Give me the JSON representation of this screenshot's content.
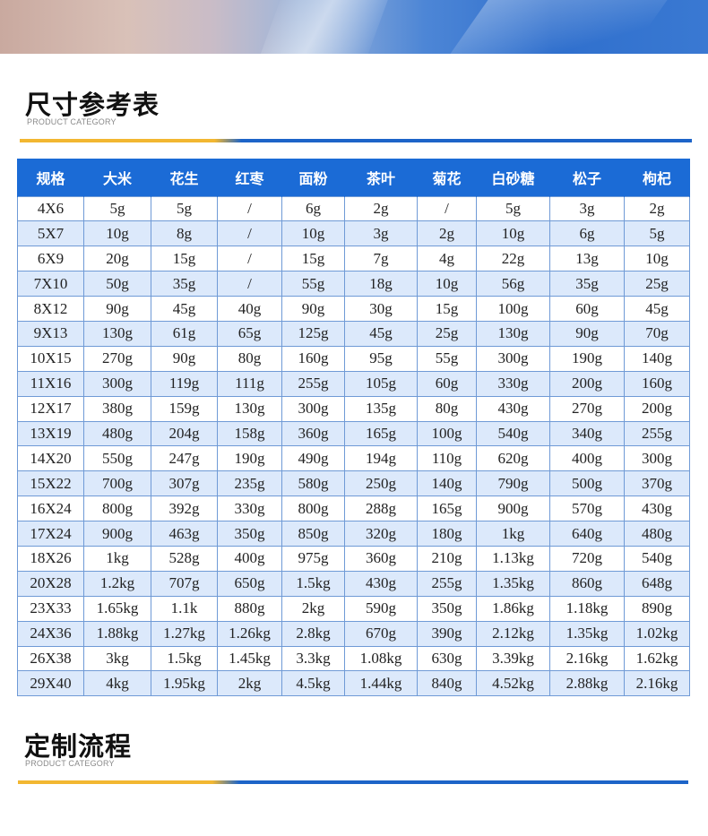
{
  "sections": {
    "size_reference": {
      "title": "尺寸参考表",
      "subtitle": "PRODUCT CATEGORY"
    },
    "custom_process": {
      "title": "定制流程",
      "subtitle": "PRODUCT CATEGORY"
    }
  },
  "colors": {
    "header_blue": "#1b6bd6",
    "row_alt": "#dce9fb",
    "rule_yellow": "#f2b731",
    "rule_blue": "#1d64c8"
  },
  "table": {
    "headers": [
      "规格",
      "大米",
      "花生",
      "红枣",
      "面粉",
      "茶叶",
      "菊花",
      "白砂糖",
      "松子",
      "枸杞"
    ],
    "rows": [
      [
        "4X6",
        "5g",
        "5g",
        "/",
        "6g",
        "2g",
        "/",
        "5g",
        "3g",
        "2g"
      ],
      [
        "5X7",
        "10g",
        "8g",
        "/",
        "10g",
        "3g",
        "2g",
        "10g",
        "6g",
        "5g"
      ],
      [
        "6X9",
        "20g",
        "15g",
        "/",
        "15g",
        "7g",
        "4g",
        "22g",
        "13g",
        "10g"
      ],
      [
        "7X10",
        "50g",
        "35g",
        "/",
        "55g",
        "18g",
        "10g",
        "56g",
        "35g",
        "25g"
      ],
      [
        "8X12",
        "90g",
        "45g",
        "40g",
        "90g",
        "30g",
        "15g",
        "100g",
        "60g",
        "45g"
      ],
      [
        "9X13",
        "130g",
        "61g",
        "65g",
        "125g",
        "45g",
        "25g",
        "130g",
        "90g",
        "70g"
      ],
      [
        "10X15",
        "270g",
        "90g",
        "80g",
        "160g",
        "95g",
        "55g",
        "300g",
        "190g",
        "140g"
      ],
      [
        "11X16",
        "300g",
        "119g",
        "111g",
        "255g",
        "105g",
        "60g",
        "330g",
        "200g",
        "160g"
      ],
      [
        "12X17",
        "380g",
        "159g",
        "130g",
        "300g",
        "135g",
        "80g",
        "430g",
        "270g",
        "200g"
      ],
      [
        "13X19",
        "480g",
        "204g",
        "158g",
        "360g",
        "165g",
        "100g",
        "540g",
        "340g",
        "255g"
      ],
      [
        "14X20",
        "550g",
        "247g",
        "190g",
        "490g",
        "194g",
        "110g",
        "620g",
        "400g",
        "300g"
      ],
      [
        "15X22",
        "700g",
        "307g",
        "235g",
        "580g",
        "250g",
        "140g",
        "790g",
        "500g",
        "370g"
      ],
      [
        "16X24",
        "800g",
        "392g",
        "330g",
        "800g",
        "288g",
        "165g",
        "900g",
        "570g",
        "430g"
      ],
      [
        "17X24",
        "900g",
        "463g",
        "350g",
        "850g",
        "320g",
        "180g",
        "1kg",
        "640g",
        "480g"
      ],
      [
        "18X26",
        "1kg",
        "528g",
        "400g",
        "975g",
        "360g",
        "210g",
        "1.13kg",
        "720g",
        "540g"
      ],
      [
        "20X28",
        "1.2kg",
        "707g",
        "650g",
        "1.5kg",
        "430g",
        "255g",
        "1.35kg",
        "860g",
        "648g"
      ],
      [
        "23X33",
        "1.65kg",
        "1.1k",
        "880g",
        "2kg",
        "590g",
        "350g",
        "1.86kg",
        "1.18kg",
        "890g"
      ],
      [
        "24X36",
        "1.88kg",
        "1.27kg",
        "1.26kg",
        "2.8kg",
        "670g",
        "390g",
        "2.12kg",
        "1.35kg",
        "1.02kg"
      ],
      [
        "26X38",
        "3kg",
        "1.5kg",
        "1.45kg",
        "3.3kg",
        "1.08kg",
        "630g",
        "3.39kg",
        "2.16kg",
        "1.62kg"
      ],
      [
        "29X40",
        "4kg",
        "1.95kg",
        "2kg",
        "4.5kg",
        "1.44kg",
        "840g",
        "4.52kg",
        "2.88kg",
        "2.16kg"
      ]
    ]
  }
}
